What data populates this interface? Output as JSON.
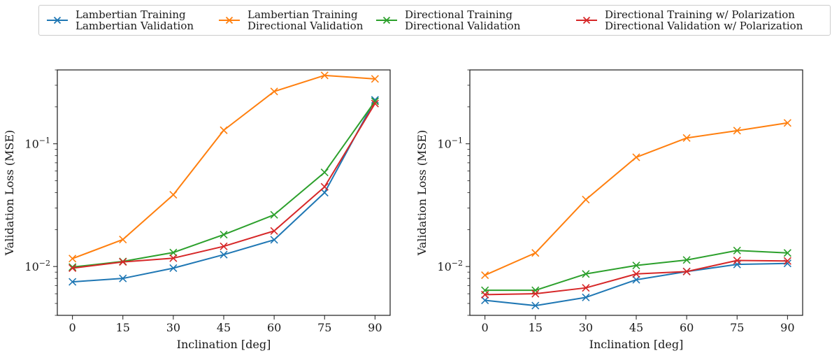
{
  "colors": {
    "blue": "#1f77b4",
    "orange": "#ff7f0e",
    "green": "#2ca02c",
    "red": "#d62728"
  },
  "legend": [
    {
      "line1": "Lambertian Training",
      "line2": "Lambertian Validation",
      "color": "#1f77b4"
    },
    {
      "line1": "Lambertian Training",
      "line2": "Directional Validation",
      "color": "#ff7f0e"
    },
    {
      "line1": "Directional Training",
      "line2": "Directional Validation",
      "color": "#2ca02c"
    },
    {
      "line1": "Directional Training w/ Polarization",
      "line2": "Directional Validation w/ Polarization",
      "color": "#d62728"
    }
  ],
  "chart_data": [
    {
      "type": "line",
      "title": "",
      "xlabel": "Inclination [deg]",
      "ylabel": "Validation Loss (MSE)",
      "yscale": "log",
      "xlim": [
        -4.5,
        94.5
      ],
      "ylim": [
        0.004,
        0.4
      ],
      "grid": false,
      "legend_position": "top (shared, above both panels)",
      "x": [
        0,
        15,
        30,
        45,
        60,
        75,
        90
      ],
      "xticks": [
        "0",
        "15",
        "30",
        "45",
        "60",
        "75",
        "90"
      ],
      "yticks": [
        {
          "value": 0.1,
          "base": "10",
          "exp": "−1"
        },
        {
          "value": 0.01,
          "base": "10",
          "exp": "−2"
        }
      ],
      "marker": "x",
      "series": [
        {
          "name": "Lambertian Training / Lambertian Validation",
          "color": "#1f77b4",
          "values": [
            0.0075,
            0.008,
            0.0097,
            0.0125,
            0.0165,
            0.04,
            0.228
          ]
        },
        {
          "name": "Lambertian Training / Directional Validation",
          "color": "#ff7f0e",
          "values": [
            0.0116,
            0.0166,
            0.0384,
            0.129,
            0.267,
            0.361,
            0.338
          ]
        },
        {
          "name": "Directional Training / Directional Validation",
          "color": "#2ca02c",
          "values": [
            0.0099,
            0.011,
            0.013,
            0.0182,
            0.0264,
            0.0585,
            0.222
          ]
        },
        {
          "name": "Directional Training w/ Polarization / Directional Validation w/ Polarization",
          "color": "#d62728",
          "values": [
            0.0097,
            0.0109,
            0.0117,
            0.0146,
            0.0195,
            0.0446,
            0.213
          ]
        }
      ]
    },
    {
      "type": "line",
      "title": "",
      "xlabel": "Inclination [deg]",
      "ylabel": "Validation Loss (MSE)",
      "yscale": "log",
      "xlim": [
        -4.5,
        94.5
      ],
      "ylim": [
        0.004,
        0.4
      ],
      "grid": false,
      "legend_position": "top (shared, above both panels)",
      "x": [
        0,
        15,
        30,
        45,
        60,
        75,
        90
      ],
      "xticks": [
        "0",
        "15",
        "30",
        "45",
        "60",
        "75",
        "90"
      ],
      "yticks": [
        {
          "value": 0.1,
          "base": "10",
          "exp": "−1"
        },
        {
          "value": 0.01,
          "base": "10",
          "exp": "−2"
        }
      ],
      "marker": "x",
      "series": [
        {
          "name": "Lambertian Training / Lambertian Validation",
          "color": "#1f77b4",
          "values": [
            0.0053,
            0.0048,
            0.0056,
            0.0078,
            0.0091,
            0.0104,
            0.0106
          ]
        },
        {
          "name": "Lambertian Training / Directional Validation",
          "color": "#ff7f0e",
          "values": [
            0.0085,
            0.0129,
            0.0351,
            0.0777,
            0.1115,
            0.128,
            0.148
          ]
        },
        {
          "name": "Directional Training / Directional Validation",
          "color": "#2ca02c",
          "values": [
            0.0064,
            0.0064,
            0.0087,
            0.0102,
            0.0113,
            0.0135,
            0.0129
          ]
        },
        {
          "name": "Directional Training w/ Polarization / Directional Validation w/ Polarization",
          "color": "#d62728",
          "values": [
            0.0059,
            0.006,
            0.0067,
            0.0087,
            0.0091,
            0.0112,
            0.0111
          ]
        }
      ]
    }
  ]
}
